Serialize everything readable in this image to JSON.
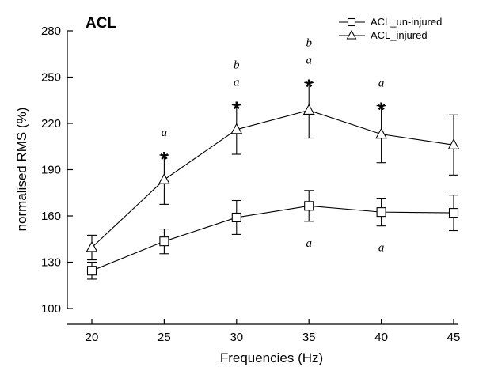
{
  "chart_data": {
    "type": "line",
    "title": "ACL",
    "xlabel": "Frequencies (Hz)",
    "ylabel": "normalised RMS (%)",
    "x": [
      20,
      25,
      30,
      35,
      40,
      45
    ],
    "xlim": [
      20,
      45
    ],
    "ylim": [
      100,
      280
    ],
    "yticks": [
      100,
      130,
      160,
      190,
      220,
      250,
      280
    ],
    "grid": false,
    "legend_position": "top-right",
    "series": [
      {
        "name": "ACL_un-injured",
        "marker": "square",
        "values": [
          124.5,
          143.5,
          159,
          166.5,
          162.5,
          162
        ],
        "errors": [
          5.5,
          8,
          11,
          10,
          9,
          11.5
        ]
      },
      {
        "name": "ACL_injured",
        "marker": "triangle",
        "values": [
          139.5,
          183.5,
          216,
          228.5,
          213,
          206
        ],
        "errors": [
          8,
          16,
          16,
          18,
          18.5,
          19.5
        ]
      }
    ],
    "annotations_above": [
      {
        "x": 25,
        "lines": [
          "a",
          "*"
        ]
      },
      {
        "x": 30,
        "lines": [
          "b",
          "a",
          "*"
        ]
      },
      {
        "x": 35,
        "lines": [
          "b",
          "a",
          "*"
        ]
      },
      {
        "x": 40,
        "lines": [
          "a",
          "*"
        ]
      }
    ],
    "annotations_below": [
      {
        "x": 35,
        "text": "a"
      },
      {
        "x": 40,
        "text": "a"
      }
    ]
  }
}
